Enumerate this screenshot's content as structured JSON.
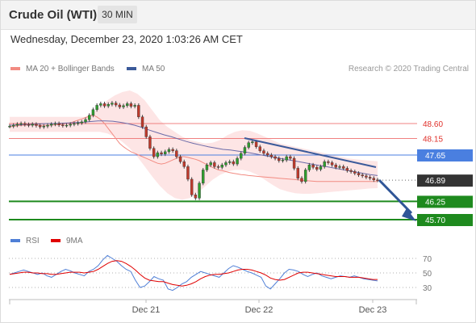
{
  "header": {
    "title": "Crude Oil (WTI)",
    "timeframe": "30 MIN",
    "datetime": "Wednesday, December 23, 2020 1:03:26 AM CET"
  },
  "legend": {
    "ma20_label": "MA 20 + Bollinger Bands",
    "ma20_color": "#f28b82",
    "ma50_label": "MA 50",
    "ma50_color": "#3b5a9a"
  },
  "credit": "Research © 2020 Trading Central",
  "rsi_legend": {
    "rsi_label": "RSI",
    "rsi_color": "#4f7fd6",
    "ma_label": "9MA",
    "ma_color": "#e00000"
  },
  "chart_data": {
    "type": "candlestick",
    "y_range": [
      45.5,
      49.0
    ],
    "x_labels": [
      "Dec 21",
      "Dec 22",
      "Dec 23"
    ],
    "last_price": 46.89,
    "levels": [
      {
        "value": 48.6,
        "label": "48.60",
        "kind": "resistance",
        "color": "#f08080"
      },
      {
        "value": 48.15,
        "label": "48.15",
        "kind": "resistance",
        "color": "#f08080"
      },
      {
        "value": 47.65,
        "label": "47.65",
        "kind": "pivot",
        "color": "#4a7fe0"
      },
      {
        "value": 46.89,
        "label": "46.89",
        "kind": "last",
        "color": "#333333"
      },
      {
        "value": 46.25,
        "label": "46.25",
        "kind": "support",
        "color": "#1e8a1e"
      },
      {
        "value": 45.7,
        "label": "45.70",
        "kind": "support",
        "color": "#1e8a1e"
      }
    ],
    "close_series": [
      48.52,
      48.55,
      48.58,
      48.6,
      48.57,
      48.55,
      48.58,
      48.54,
      48.5,
      48.52,
      48.55,
      48.58,
      48.6,
      48.56,
      48.54,
      48.55,
      48.58,
      48.6,
      48.62,
      48.65,
      48.72,
      48.85,
      49.02,
      49.15,
      49.2,
      49.13,
      49.18,
      49.22,
      49.16,
      49.1,
      49.14,
      49.2,
      49.12,
      49.15,
      48.8,
      48.5,
      48.2,
      47.85,
      47.6,
      47.72,
      47.68,
      47.75,
      47.82,
      47.78,
      47.6,
      47.45,
      47.3,
      46.92,
      46.45,
      46.35,
      46.8,
      47.2,
      47.35,
      47.42,
      47.3,
      47.28,
      47.35,
      47.42,
      47.45,
      47.38,
      47.55,
      47.7,
      47.88,
      48.02,
      48.05,
      47.9,
      47.78,
      47.7,
      47.65,
      47.6,
      47.55,
      47.48,
      47.5,
      47.6,
      47.55,
      47.25,
      46.95,
      46.85,
      47.2,
      47.35,
      47.28,
      47.22,
      47.3,
      47.45,
      47.42,
      47.35,
      47.28,
      47.3,
      47.25,
      47.18,
      47.15,
      47.1,
      47.05,
      47.02,
      46.98,
      46.95,
      46.9,
      46.89
    ],
    "ma20_series": [
      48.5,
      48.52,
      48.53,
      48.55,
      48.55,
      48.56,
      48.56,
      48.56,
      48.55,
      48.55,
      48.55,
      48.56,
      48.56,
      48.57,
      48.58,
      48.6,
      48.62,
      48.66,
      48.7,
      48.74,
      48.78,
      48.82,
      48.85,
      48.8,
      48.72,
      48.6,
      48.45,
      48.3,
      48.15,
      48.0,
      47.9,
      47.82,
      47.75,
      47.7,
      47.65,
      47.6,
      47.55,
      47.5,
      47.45,
      47.4,
      47.38,
      47.4,
      47.45,
      47.5,
      47.55,
      47.6,
      47.6,
      47.58,
      47.55,
      47.52,
      47.48,
      47.42,
      47.36,
      47.3,
      47.25,
      47.2,
      47.18,
      47.15,
      47.12,
      47.1,
      47.08,
      47.06,
      47.05,
      47.03,
      47.02,
      47.01,
      47.0,
      46.99,
      46.98,
      46.97,
      46.96,
      46.95,
      46.94,
      46.93,
      46.92,
      46.91,
      46.9,
      46.89,
      46.88,
      46.87,
      46.86,
      46.85,
      46.85,
      46.85,
      46.85,
      46.85,
      46.85,
      46.85,
      46.85,
      46.85,
      46.85,
      46.85,
      46.85,
      46.85,
      46.85,
      46.85,
      46.85,
      46.85
    ],
    "ma50_series": [
      48.55,
      48.56,
      48.57,
      48.58,
      48.59,
      48.6,
      48.6,
      48.61,
      48.62,
      48.63,
      48.64,
      48.66,
      48.68,
      48.68,
      48.67,
      48.64,
      48.6,
      48.55,
      48.48,
      48.4,
      48.33,
      48.26,
      48.2,
      48.13,
      48.06,
      48.0,
      47.95,
      47.9,
      47.86,
      47.82,
      47.8,
      47.77,
      47.74,
      47.7,
      47.66,
      47.62,
      47.58,
      47.54,
      47.5,
      47.46,
      47.42,
      47.38,
      47.34,
      47.3,
      47.26,
      47.22,
      47.18,
      47.14,
      47.1,
      47.06,
      47.03
    ],
    "bb_upper": [
      48.8,
      48.8,
      48.8,
      48.8,
      48.8,
      48.8,
      48.8,
      48.8,
      48.8,
      48.8,
      48.8,
      48.9,
      49.1,
      49.3,
      49.45,
      49.55,
      49.6,
      49.5,
      49.3,
      49.0,
      48.7,
      48.5,
      48.35,
      48.2,
      48.1,
      48.05,
      48.0,
      48.02,
      48.1,
      48.25,
      48.35,
      48.4,
      48.38,
      48.3,
      48.2,
      48.1,
      48.0,
      47.95,
      47.9,
      47.85,
      47.8,
      47.75,
      47.7,
      47.65,
      47.6,
      47.55,
      47.52,
      47.5,
      47.48,
      47.46
    ],
    "bb_lower": [
      48.35,
      48.35,
      48.35,
      48.35,
      48.35,
      48.35,
      48.35,
      48.35,
      48.35,
      48.35,
      48.35,
      48.35,
      48.35,
      48.3,
      48.2,
      48.05,
      47.85,
      47.6,
      47.3,
      47.0,
      46.72,
      46.5,
      46.35,
      46.3,
      46.35,
      46.5,
      46.7,
      46.9,
      47.05,
      47.15,
      47.2,
      47.2,
      47.15,
      47.05,
      46.9,
      46.75,
      46.62,
      46.55,
      46.5,
      46.48,
      46.48,
      46.5,
      46.52,
      46.54,
      46.56,
      46.58,
      46.6,
      46.62,
      46.64,
      46.65
    ],
    "rsi_ticks": [
      70,
      50,
      30
    ],
    "rsi_series": [
      48,
      50,
      52,
      54,
      52,
      50,
      48,
      50,
      46,
      44,
      48,
      52,
      55,
      53,
      50,
      48,
      46,
      52,
      55,
      60,
      68,
      74,
      70,
      66,
      60,
      55,
      52,
      40,
      30,
      32,
      38,
      45,
      42,
      40,
      28,
      26,
      30,
      35,
      38,
      44,
      48,
      52,
      50,
      48,
      46,
      44,
      50,
      56,
      60,
      58,
      55,
      52,
      50,
      47,
      44,
      32,
      28,
      35,
      42,
      50,
      55,
      54,
      52,
      48,
      45,
      48,
      50,
      46,
      44,
      42,
      44,
      46,
      45,
      44,
      46,
      44,
      42,
      41,
      40,
      39
    ],
    "rsi_ma_series": [
      48,
      49,
      50,
      51,
      51,
      50,
      50,
      49,
      49,
      48,
      48,
      49,
      50,
      51,
      51,
      51,
      50,
      51,
      52,
      55,
      59,
      63,
      66,
      67,
      66,
      63,
      59,
      54,
      48,
      43,
      40,
      39,
      38,
      38,
      36,
      34,
      33,
      32,
      33,
      35,
      38,
      42,
      45,
      47,
      48,
      48,
      49,
      50,
      52,
      54,
      55,
      55,
      54,
      52,
      50,
      47,
      43,
      41,
      40,
      41,
      44,
      47,
      50,
      51,
      51,
      50,
      49,
      48,
      47,
      46,
      45,
      45,
      45,
      44,
      44,
      44,
      43,
      42,
      41,
      41
    ],
    "arrow_target": 45.7
  }
}
